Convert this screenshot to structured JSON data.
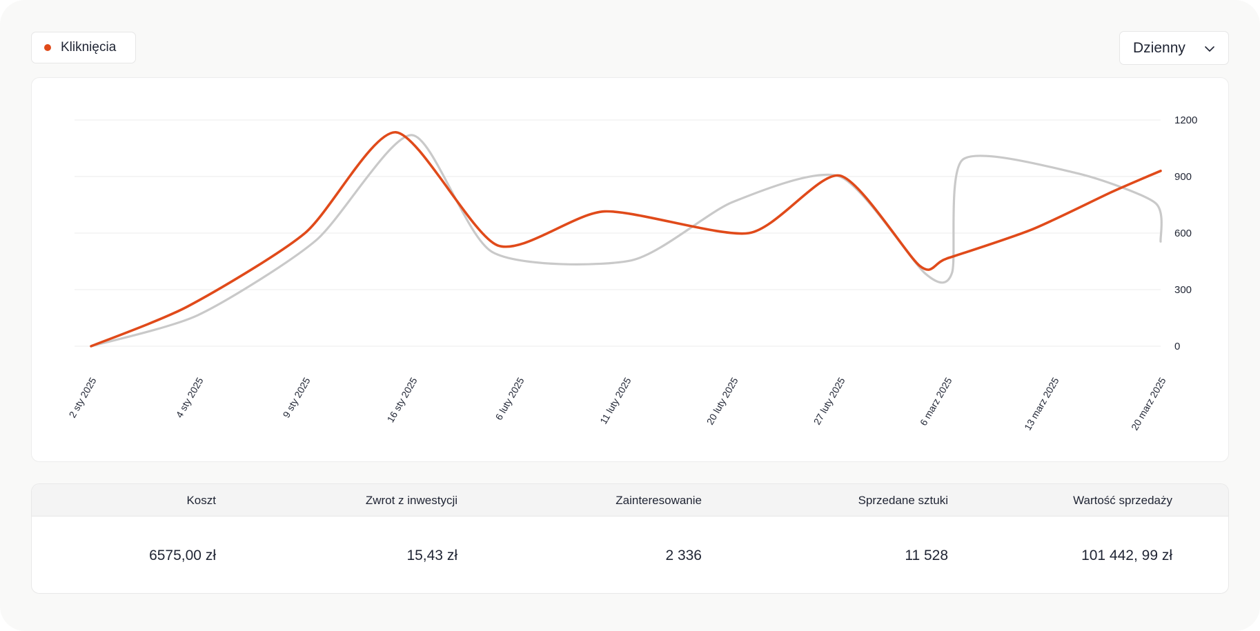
{
  "legend": {
    "label": "Kliknięcia",
    "color": "#e04a1a"
  },
  "dropdown": {
    "value": "Dzienny",
    "icon": "chevron-down-icon"
  },
  "chart_data": {
    "type": "line",
    "x": [
      "2 sty 2025",
      "4 sty 2025",
      "9 sty 2025",
      "16 sty 2025",
      "6 luty 2025",
      "11 luty 2025",
      "20 luty 2025",
      "27 luty 2025",
      "6 marz 2025",
      "13 marz 2025",
      "20 marz 2025"
    ],
    "ylim": [
      0,
      1200
    ],
    "yticks": [
      0,
      300,
      600,
      900,
      1200
    ],
    "grid": true,
    "series": [
      {
        "name": "Kliknięcia",
        "color": "#e04a1a",
        "points": [
          [
            0,
            0
          ],
          [
            0.9,
            210
          ],
          [
            2.0,
            600
          ],
          [
            2.85,
            1135
          ],
          [
            3.8,
            535
          ],
          [
            4.8,
            715
          ],
          [
            6.15,
            600
          ],
          [
            7.0,
            905
          ],
          [
            7.75,
            425
          ],
          [
            8.0,
            465
          ],
          [
            8.8,
            620
          ],
          [
            9.55,
            820
          ],
          [
            10.0,
            930
          ]
        ]
      },
      {
        "color": "#c9c9c9",
        "points": [
          [
            0,
            0
          ],
          [
            1.0,
            165
          ],
          [
            2.1,
            560
          ],
          [
            3.0,
            1120
          ],
          [
            3.75,
            500
          ],
          [
            5.05,
            455
          ],
          [
            6.0,
            765
          ],
          [
            7.0,
            900
          ],
          [
            7.8,
            385
          ],
          [
            8.05,
            390
          ],
          [
            8.15,
            990
          ],
          [
            9.2,
            920
          ],
          [
            9.95,
            760
          ],
          [
            10.0,
            555
          ]
        ]
      }
    ]
  },
  "stats": [
    {
      "label": "Koszt",
      "value": "6575,00 zł"
    },
    {
      "label": "Zwrot z inwestycji",
      "value": "15,43 zł"
    },
    {
      "label": "Zainteresowanie",
      "value": "2 336"
    },
    {
      "label": "Sprzedane sztuki",
      "value": "11 528"
    },
    {
      "label": "Wartość sprzedaży",
      "value": "101 442, 99 zł"
    }
  ]
}
